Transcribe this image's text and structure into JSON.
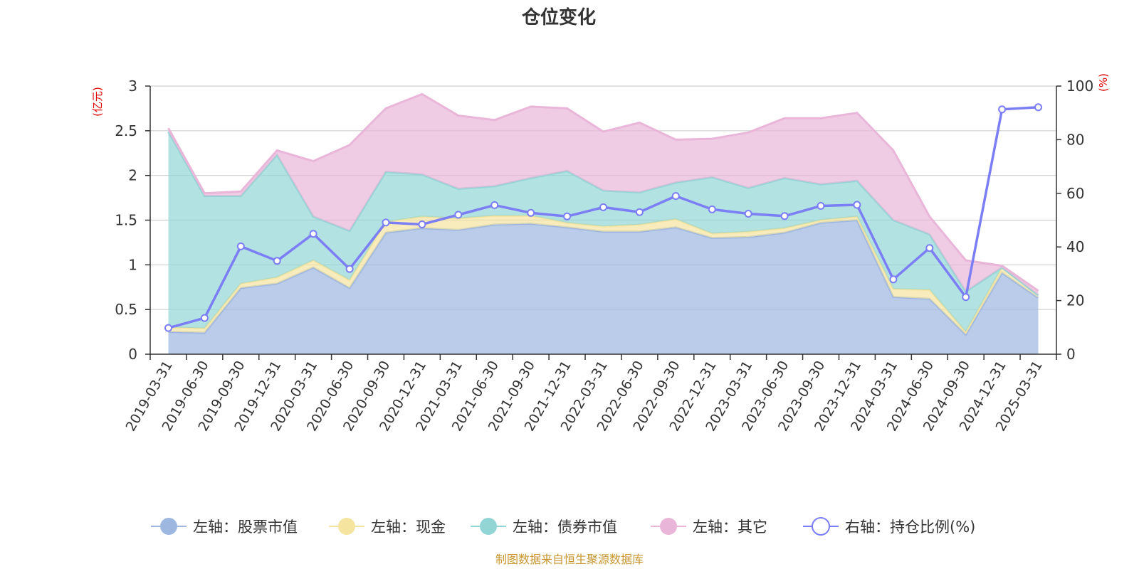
{
  "chart_data": {
    "type": "area",
    "title": "仓位变化",
    "left_axis_unit": "(亿元)",
    "right_axis_unit": "(%)",
    "left_ylim": [
      0,
      3
    ],
    "left_ticks": [
      "0",
      "0.5",
      "1",
      "1.5",
      "2",
      "2.5",
      "3"
    ],
    "right_ylim": [
      0,
      100
    ],
    "right_ticks": [
      "0",
      "20",
      "40",
      "60",
      "80",
      "100"
    ],
    "grid": true,
    "legend_position": "bottom",
    "x": [
      "2019-03-31",
      "2019-06-30",
      "2019-09-30",
      "2019-12-31",
      "2020-03-31",
      "2020-06-30",
      "2020-09-30",
      "2020-12-31",
      "2021-03-31",
      "2021-06-30",
      "2021-09-30",
      "2021-12-31",
      "2022-03-31",
      "2022-06-30",
      "2022-09-30",
      "2022-12-31",
      "2023-03-31",
      "2023-06-30",
      "2023-09-30",
      "2023-12-31",
      "2024-03-31",
      "2024-06-30",
      "2024-09-30",
      "2024-12-31",
      "2025-03-31"
    ],
    "stacked_series": [
      {
        "name": "左轴：股票市值",
        "color": "#9db7e0",
        "values": [
          0.25,
          0.24,
          0.74,
          0.79,
          0.97,
          0.74,
          1.36,
          1.41,
          1.39,
          1.45,
          1.46,
          1.42,
          1.37,
          1.37,
          1.42,
          1.3,
          1.31,
          1.36,
          1.47,
          1.5,
          0.64,
          0.62,
          0.22,
          0.91,
          0.63
        ]
      },
      {
        "name": "左轴：现金",
        "color": "#f5e4a0",
        "values": [
          0.05,
          0.05,
          0.05,
          0.07,
          0.08,
          0.09,
          0.12,
          0.13,
          0.13,
          0.1,
          0.09,
          0.05,
          0.06,
          0.08,
          0.09,
          0.05,
          0.06,
          0.05,
          0.03,
          0.04,
          0.09,
          0.1,
          0.03,
          0.06,
          0.03
        ]
      },
      {
        "name": "左轴：债券市值",
        "color": "#93d5d5",
        "values": [
          2.19,
          1.48,
          0.98,
          1.37,
          0.49,
          0.55,
          0.56,
          0.47,
          0.33,
          0.33,
          0.42,
          0.58,
          0.4,
          0.36,
          0.41,
          0.63,
          0.49,
          0.56,
          0.4,
          0.4,
          0.77,
          0.62,
          0.45,
          0.0,
          0.0
        ]
      },
      {
        "name": "左轴：其它",
        "color": "#e9b6d9",
        "values": [
          0.04,
          0.03,
          0.05,
          0.05,
          0.62,
          0.96,
          0.71,
          0.9,
          0.82,
          0.74,
          0.8,
          0.7,
          0.66,
          0.78,
          0.48,
          0.43,
          0.62,
          0.67,
          0.74,
          0.76,
          0.78,
          0.2,
          0.35,
          0.02,
          0.05
        ]
      }
    ],
    "line_series": {
      "name": "右轴：持仓比例(%)",
      "color": "#7b7ef5",
      "values": [
        9.8,
        13.5,
        40.2,
        34.8,
        44.9,
        31.8,
        49.1,
        48.4,
        52.0,
        55.6,
        52.7,
        51.4,
        54.8,
        53.0,
        59.0,
        54.0,
        52.4,
        51.5,
        55.3,
        55.7,
        27.9,
        39.6,
        21.3,
        91.3,
        92.1
      ]
    },
    "legend": [
      {
        "label": "左轴：股票市值",
        "color": "#9db7e0",
        "marker": "filled"
      },
      {
        "label": "左轴：现金",
        "color": "#f5e4a0",
        "marker": "filled"
      },
      {
        "label": "左轴：债券市值",
        "color": "#93d5d5",
        "marker": "filled"
      },
      {
        "label": "左轴：其它",
        "color": "#e9b6d9",
        "marker": "filled"
      },
      {
        "label": "右轴：持仓比例(%)",
        "color": "#7b7ef5",
        "marker": "hollow"
      }
    ],
    "source_note": "制图数据来自恒生聚源数据库"
  }
}
